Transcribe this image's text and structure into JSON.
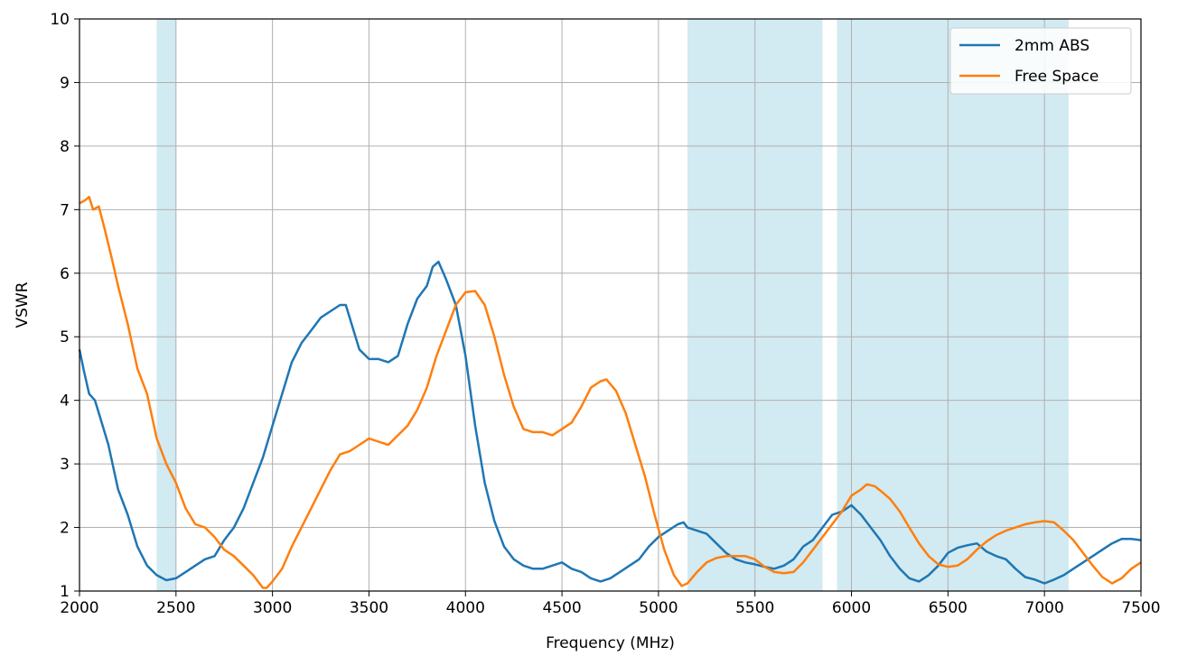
{
  "chart_data": {
    "type": "line",
    "xlabel": "Frequency (MHz)",
    "ylabel": "VSWR",
    "xlim": [
      2000,
      7500
    ],
    "ylim": [
      1,
      10
    ],
    "xticks": [
      "2000",
      "2500",
      "3000",
      "3500",
      "4000",
      "4500",
      "5000",
      "5500",
      "6000",
      "6500",
      "7000",
      "7500"
    ],
    "yticks": [
      "1",
      "2",
      "3",
      "4",
      "5",
      "6",
      "7",
      "8",
      "9",
      "10"
    ],
    "grid": true,
    "legend_position": "top-right",
    "bands": [
      [
        2400,
        2500
      ],
      [
        5150,
        5850
      ],
      [
        5925,
        7125
      ]
    ],
    "band_color": "#add8e6",
    "series": [
      {
        "name": "2mm ABS",
        "color": "#1f77b4",
        "points": [
          [
            2000,
            4.8
          ],
          [
            2020,
            4.5
          ],
          [
            2050,
            4.1
          ],
          [
            2080,
            4.0
          ],
          [
            2100,
            3.8
          ],
          [
            2150,
            3.3
          ],
          [
            2200,
            2.6
          ],
          [
            2250,
            2.2
          ],
          [
            2300,
            1.7
          ],
          [
            2350,
            1.4
          ],
          [
            2400,
            1.25
          ],
          [
            2450,
            1.17
          ],
          [
            2500,
            1.2
          ],
          [
            2550,
            1.3
          ],
          [
            2600,
            1.4
          ],
          [
            2650,
            1.5
          ],
          [
            2700,
            1.55
          ],
          [
            2750,
            1.8
          ],
          [
            2800,
            2.0
          ],
          [
            2850,
            2.3
          ],
          [
            2900,
            2.7
          ],
          [
            2950,
            3.1
          ],
          [
            3000,
            3.6
          ],
          [
            3050,
            4.1
          ],
          [
            3100,
            4.6
          ],
          [
            3150,
            4.9
          ],
          [
            3200,
            5.1
          ],
          [
            3250,
            5.3
          ],
          [
            3300,
            5.4
          ],
          [
            3350,
            5.5
          ],
          [
            3380,
            5.5
          ],
          [
            3400,
            5.3
          ],
          [
            3450,
            4.8
          ],
          [
            3500,
            4.65
          ],
          [
            3550,
            4.65
          ],
          [
            3600,
            4.6
          ],
          [
            3650,
            4.7
          ],
          [
            3700,
            5.2
          ],
          [
            3750,
            5.6
          ],
          [
            3800,
            5.8
          ],
          [
            3830,
            6.1
          ],
          [
            3860,
            6.18
          ],
          [
            3900,
            5.9
          ],
          [
            3950,
            5.5
          ],
          [
            4000,
            4.7
          ],
          [
            4050,
            3.6
          ],
          [
            4100,
            2.7
          ],
          [
            4150,
            2.1
          ],
          [
            4200,
            1.7
          ],
          [
            4250,
            1.5
          ],
          [
            4300,
            1.4
          ],
          [
            4350,
            1.35
          ],
          [
            4400,
            1.35
          ],
          [
            4450,
            1.4
          ],
          [
            4500,
            1.45
          ],
          [
            4550,
            1.35
          ],
          [
            4600,
            1.3
          ],
          [
            4650,
            1.2
          ],
          [
            4700,
            1.15
          ],
          [
            4750,
            1.2
          ],
          [
            4800,
            1.3
          ],
          [
            4850,
            1.4
          ],
          [
            4900,
            1.5
          ],
          [
            4950,
            1.7
          ],
          [
            5000,
            1.85
          ],
          [
            5050,
            1.95
          ],
          [
            5100,
            2.05
          ],
          [
            5130,
            2.08
          ],
          [
            5150,
            2.0
          ],
          [
            5200,
            1.95
          ],
          [
            5250,
            1.9
          ],
          [
            5300,
            1.75
          ],
          [
            5350,
            1.6
          ],
          [
            5400,
            1.5
          ],
          [
            5450,
            1.45
          ],
          [
            5500,
            1.42
          ],
          [
            5550,
            1.38
          ],
          [
            5600,
            1.35
          ],
          [
            5650,
            1.4
          ],
          [
            5700,
            1.5
          ],
          [
            5750,
            1.7
          ],
          [
            5800,
            1.8
          ],
          [
            5850,
            2.0
          ],
          [
            5900,
            2.2
          ],
          [
            5950,
            2.25
          ],
          [
            6000,
            2.35
          ],
          [
            6050,
            2.2
          ],
          [
            6100,
            2.0
          ],
          [
            6150,
            1.8
          ],
          [
            6200,
            1.55
          ],
          [
            6250,
            1.35
          ],
          [
            6300,
            1.2
          ],
          [
            6350,
            1.15
          ],
          [
            6400,
            1.25
          ],
          [
            6450,
            1.4
          ],
          [
            6500,
            1.6
          ],
          [
            6550,
            1.68
          ],
          [
            6600,
            1.72
          ],
          [
            6650,
            1.75
          ],
          [
            6700,
            1.62
          ],
          [
            6750,
            1.55
          ],
          [
            6800,
            1.5
          ],
          [
            6850,
            1.35
          ],
          [
            6900,
            1.22
          ],
          [
            6950,
            1.18
          ],
          [
            7000,
            1.12
          ],
          [
            7050,
            1.18
          ],
          [
            7100,
            1.25
          ],
          [
            7150,
            1.35
          ],
          [
            7200,
            1.45
          ],
          [
            7250,
            1.55
          ],
          [
            7300,
            1.65
          ],
          [
            7350,
            1.75
          ],
          [
            7400,
            1.82
          ],
          [
            7450,
            1.82
          ],
          [
            7500,
            1.8
          ]
        ]
      },
      {
        "name": "Free Space",
        "color": "#ff7f0e",
        "points": [
          [
            2000,
            7.1
          ],
          [
            2030,
            7.15
          ],
          [
            2050,
            7.2
          ],
          [
            2070,
            7.0
          ],
          [
            2100,
            7.05
          ],
          [
            2130,
            6.7
          ],
          [
            2170,
            6.2
          ],
          [
            2200,
            5.8
          ],
          [
            2250,
            5.2
          ],
          [
            2300,
            4.5
          ],
          [
            2350,
            4.1
          ],
          [
            2400,
            3.4
          ],
          [
            2450,
            3.0
          ],
          [
            2500,
            2.7
          ],
          [
            2550,
            2.3
          ],
          [
            2600,
            2.05
          ],
          [
            2650,
            2.0
          ],
          [
            2700,
            1.85
          ],
          [
            2750,
            1.65
          ],
          [
            2800,
            1.55
          ],
          [
            2850,
            1.4
          ],
          [
            2900,
            1.25
          ],
          [
            2950,
            1.05
          ],
          [
            2970,
            1.05
          ],
          [
            3000,
            1.15
          ],
          [
            3050,
            1.35
          ],
          [
            3100,
            1.7
          ],
          [
            3150,
            2.0
          ],
          [
            3200,
            2.3
          ],
          [
            3250,
            2.6
          ],
          [
            3300,
            2.9
          ],
          [
            3350,
            3.15
          ],
          [
            3400,
            3.2
          ],
          [
            3450,
            3.3
          ],
          [
            3500,
            3.4
          ],
          [
            3550,
            3.35
          ],
          [
            3600,
            3.3
          ],
          [
            3650,
            3.45
          ],
          [
            3700,
            3.6
          ],
          [
            3750,
            3.85
          ],
          [
            3800,
            4.2
          ],
          [
            3850,
            4.7
          ],
          [
            3900,
            5.1
          ],
          [
            3950,
            5.5
          ],
          [
            4000,
            5.7
          ],
          [
            4050,
            5.72
          ],
          [
            4100,
            5.5
          ],
          [
            4150,
            5.0
          ],
          [
            4200,
            4.4
          ],
          [
            4250,
            3.9
          ],
          [
            4300,
            3.55
          ],
          [
            4350,
            3.5
          ],
          [
            4400,
            3.5
          ],
          [
            4450,
            3.45
          ],
          [
            4500,
            3.55
          ],
          [
            4550,
            3.65
          ],
          [
            4600,
            3.9
          ],
          [
            4650,
            4.2
          ],
          [
            4700,
            4.3
          ],
          [
            4730,
            4.33
          ],
          [
            4780,
            4.15
          ],
          [
            4830,
            3.8
          ],
          [
            4880,
            3.3
          ],
          [
            4930,
            2.8
          ],
          [
            4980,
            2.2
          ],
          [
            5030,
            1.65
          ],
          [
            5080,
            1.25
          ],
          [
            5120,
            1.08
          ],
          [
            5150,
            1.12
          ],
          [
            5200,
            1.3
          ],
          [
            5250,
            1.45
          ],
          [
            5300,
            1.52
          ],
          [
            5350,
            1.55
          ],
          [
            5400,
            1.55
          ],
          [
            5450,
            1.55
          ],
          [
            5500,
            1.5
          ],
          [
            5550,
            1.38
          ],
          [
            5600,
            1.3
          ],
          [
            5650,
            1.28
          ],
          [
            5700,
            1.3
          ],
          [
            5750,
            1.45
          ],
          [
            5800,
            1.65
          ],
          [
            5850,
            1.85
          ],
          [
            5900,
            2.05
          ],
          [
            5950,
            2.25
          ],
          [
            6000,
            2.5
          ],
          [
            6050,
            2.6
          ],
          [
            6080,
            2.68
          ],
          [
            6120,
            2.65
          ],
          [
            6150,
            2.58
          ],
          [
            6200,
            2.45
          ],
          [
            6250,
            2.25
          ],
          [
            6300,
            2.0
          ],
          [
            6350,
            1.75
          ],
          [
            6400,
            1.55
          ],
          [
            6450,
            1.42
          ],
          [
            6500,
            1.38
          ],
          [
            6550,
            1.4
          ],
          [
            6600,
            1.5
          ],
          [
            6650,
            1.65
          ],
          [
            6700,
            1.78
          ],
          [
            6750,
            1.88
          ],
          [
            6800,
            1.95
          ],
          [
            6850,
            2.0
          ],
          [
            6900,
            2.05
          ],
          [
            6950,
            2.08
          ],
          [
            7000,
            2.1
          ],
          [
            7050,
            2.08
          ],
          [
            7100,
            1.95
          ],
          [
            7150,
            1.8
          ],
          [
            7200,
            1.6
          ],
          [
            7250,
            1.4
          ],
          [
            7300,
            1.22
          ],
          [
            7350,
            1.12
          ],
          [
            7400,
            1.2
          ],
          [
            7450,
            1.35
          ],
          [
            7500,
            1.45
          ]
        ]
      }
    ]
  }
}
